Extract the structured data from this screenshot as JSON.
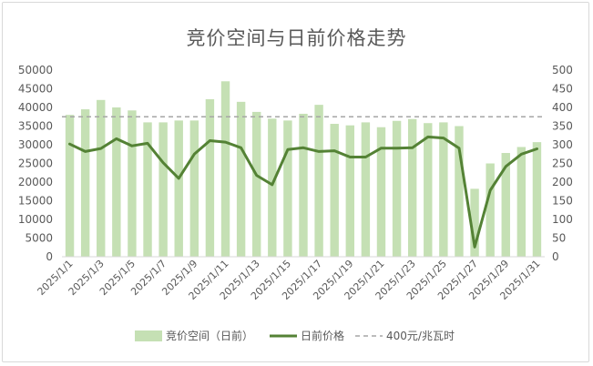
{
  "chart_data": {
    "type": "bar",
    "title": "竞价空间与日前价格走势",
    "x": [
      "2025/1/1",
      "2025/1/2",
      "2025/1/3",
      "2025/1/4",
      "2025/1/5",
      "2025/1/6",
      "2025/1/7",
      "2025/1/8",
      "2025/1/9",
      "2025/1/10",
      "2025/1/11",
      "2025/1/12",
      "2025/1/13",
      "2025/1/14",
      "2025/1/15",
      "2025/1/16",
      "2025/1/17",
      "2025/1/18",
      "2025/1/19",
      "2025/1/20",
      "2025/1/21",
      "2025/1/22",
      "2025/1/23",
      "2025/1/24",
      "2025/1/25",
      "2025/1/26",
      "2025/1/27",
      "2025/1/28",
      "2025/1/29",
      "2025/1/30",
      "2025/1/31"
    ],
    "x_tick_labels": [
      "2025/1/1",
      "2025/1/3",
      "2025/1/5",
      "2025/1/7",
      "2025/1/9",
      "2025/1/11",
      "2025/1/13",
      "2025/1/15",
      "2025/1/17",
      "2025/1/19",
      "2025/1/21",
      "2025/1/23",
      "2025/1/25",
      "2025/1/27",
      "2025/1/29",
      "2025/1/31"
    ],
    "y_left": {
      "ylim": [
        0,
        50000
      ],
      "ticks": [
        "0",
        "5000",
        "10000",
        "15000",
        "20000",
        "25000",
        "30000",
        "35000",
        "40000",
        "45000",
        "50000"
      ]
    },
    "y_right": {
      "ylim": [
        0,
        500
      ],
      "ticks": [
        "0",
        "50",
        "100",
        "150",
        "200",
        "250",
        "300",
        "350",
        "400",
        "450",
        "500"
      ]
    },
    "series": [
      {
        "name": "竞价空间（日前）",
        "type": "bar",
        "axis": "left",
        "color": "#c5e0b4",
        "values": [
          38000,
          39500,
          42000,
          40000,
          39200,
          36000,
          36000,
          36500,
          36500,
          42200,
          47000,
          41500,
          38800,
          37000,
          36500,
          38300,
          40700,
          35600,
          35200,
          36000,
          34700,
          36400,
          36900,
          35800,
          36000,
          35000,
          18200,
          25000,
          27800,
          29400,
          30700
        ]
      },
      {
        "name": "日前价格",
        "type": "line",
        "axis": "right",
        "color": "#548235",
        "values": [
          302,
          282,
          290,
          316,
          297,
          304,
          252,
          210,
          275,
          311,
          307,
          292,
          218,
          193,
          287,
          292,
          282,
          284,
          267,
          267,
          291,
          291,
          292,
          321,
          318,
          291,
          26,
          178,
          242,
          275,
          289
        ]
      },
      {
        "name": "400元/兆瓦时",
        "type": "reference",
        "axis": "left",
        "color": "#a6a6a6",
        "value": 37500
      }
    ],
    "legend_position": "bottom",
    "grid": false
  }
}
